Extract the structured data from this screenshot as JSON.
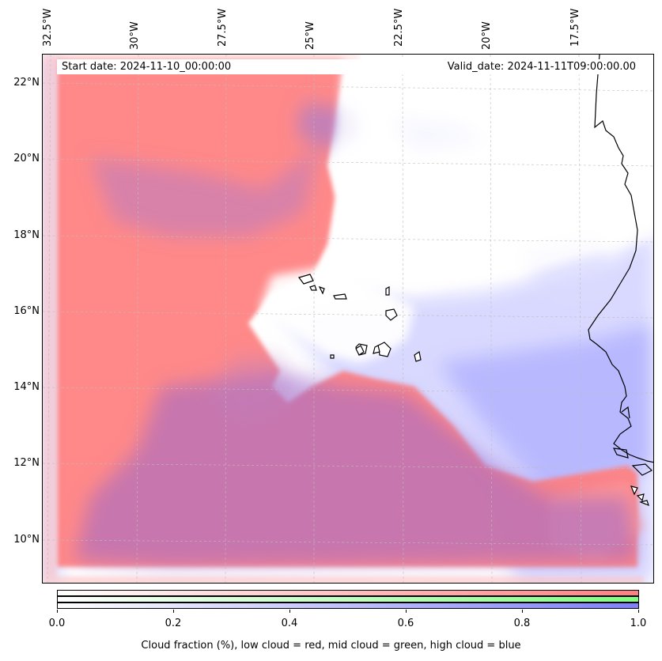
{
  "map": {
    "start_label": "Start date: 2024-11-10_00:00:00",
    "valid_label": "Valid_date: 2024-11-11T09:00:00.00",
    "lon_labels": [
      "32.5°W",
      "30°W",
      "27.5°W",
      "25°W",
      "22.5°W",
      "20°W",
      "17.5°W"
    ],
    "lat_labels": [
      "22°N",
      "20°N",
      "18°N",
      "16°N",
      "14°N",
      "12°N",
      "10°N"
    ],
    "colors": {
      "low_cloud": "#ff7f7f",
      "mid_cloud": "#7fff7f",
      "high_cloud": "#7f7fff",
      "coastline": "#000000"
    }
  },
  "colorbar": {
    "ticks": [
      "0.0",
      "0.2",
      "0.4",
      "0.6",
      "0.8",
      "1.0"
    ],
    "caption": "Cloud fraction (%), low cloud = red, mid cloud = green, high cloud = blue"
  }
}
